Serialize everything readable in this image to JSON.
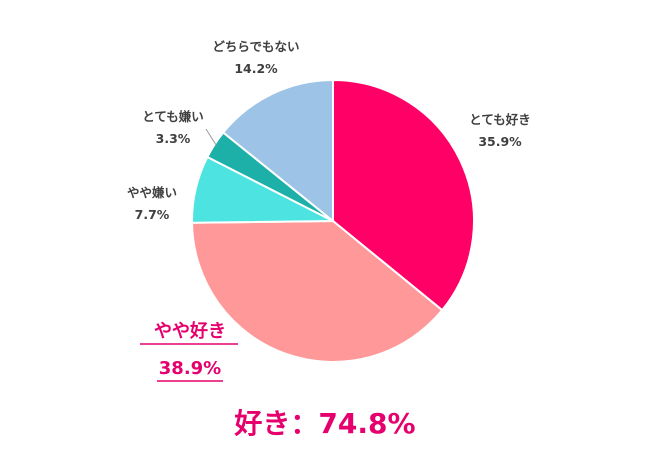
{
  "chart_data": {
    "type": "pie",
    "start": "top",
    "direction": "clockwise",
    "slices": [
      {
        "label": "とても好き",
        "value": 35.9,
        "display": "35.9%",
        "color": "#ff0066",
        "highlight": false
      },
      {
        "label": "やや好き",
        "value": 38.9,
        "display": "38.9%",
        "color": "#ff9999",
        "highlight": true
      },
      {
        "label": "やや嫌い",
        "value": 7.7,
        "display": "7.7%",
        "color": "#4de3e0",
        "highlight": false
      },
      {
        "label": "とても嫌い",
        "value": 3.3,
        "display": "3.3%",
        "color": "#1cb0a8",
        "highlight": false
      },
      {
        "label": "どちらでもない",
        "value": 14.2,
        "display": "14.2%",
        "color": "#9dc3e6",
        "highlight": false
      }
    ]
  },
  "summary": "好き：74.8%"
}
